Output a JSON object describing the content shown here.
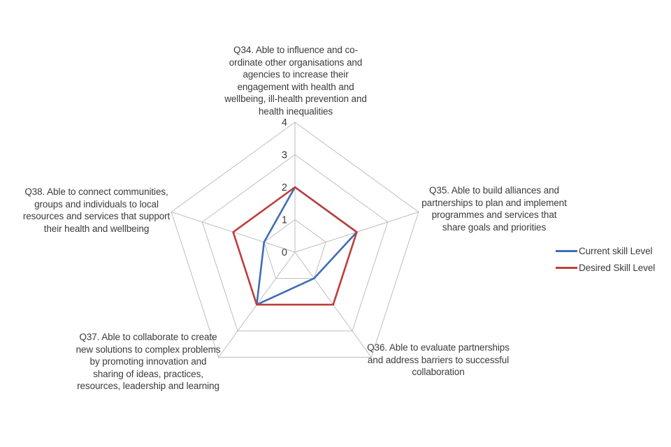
{
  "chart": {
    "background": "#ffffff",
    "text_color": "#3b3b3b",
    "grid_color": "#bdbdbd"
  },
  "chart_data": {
    "type": "radar",
    "title": "",
    "categories": [
      "Q34. Able to influence and co-\nordinate other organisations and\nagencies to increase their\nengagement with health and\nwellbeing, ill-health prevention and\nhealth inequalities",
      "Q35. Able to build alliances and\npartnerships to plan and implement\nprogrammes and services that\nshare goals and priorities",
      "Q36. Able to evaluate partnerships\nand address barriers to successful\ncollaboration",
      "Q37. Able to collaborate to create\nnew solutions to complex problems\nby promoting innovation and\nsharing of ideas, practices,\nresources, leadership and learning",
      "Q38. Able to connect communities,\ngroups and individuals to local\nresources and services that support\ntheir health and wellbeing"
    ],
    "series": [
      {
        "name": "Current skill Level",
        "color": "#3e6eb5",
        "values": [
          2,
          2,
          1,
          2,
          1
        ]
      },
      {
        "name": "Desired Skill Level",
        "color": "#be3e3c",
        "values": [
          2,
          2,
          2,
          2,
          2
        ]
      }
    ],
    "r_axis": {
      "min": 0,
      "max": 4,
      "ticks": [
        0,
        1,
        2,
        3,
        4
      ]
    },
    "grid": true,
    "legend_position": "right"
  }
}
